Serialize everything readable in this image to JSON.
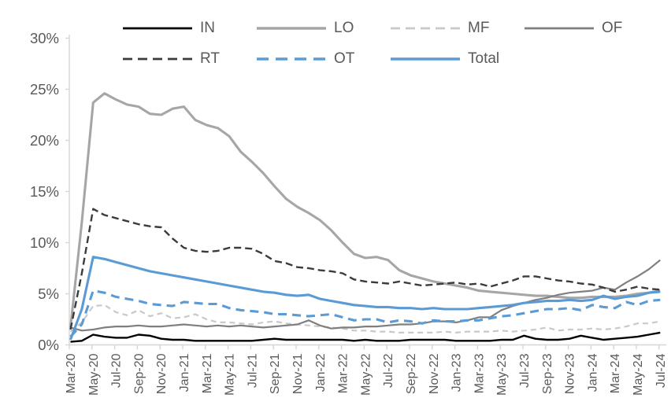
{
  "chart_data": {
    "type": "line",
    "title": "",
    "ylabel": "",
    "xlabel": "",
    "ylim": [
      0,
      30
    ],
    "grid": false,
    "legend_position": "top",
    "y_tick_labels": [
      "0%",
      "5%",
      "10%",
      "15%",
      "20%",
      "25%",
      "30%"
    ],
    "y_tick_values": [
      0,
      5,
      10,
      15,
      20,
      25,
      30
    ],
    "x_tick_labels": [
      "Mar-20",
      "May-20",
      "Jul-20",
      "Sep-20",
      "Nov-20",
      "Jan-21",
      "Mar-21",
      "May-21",
      "Jul-21",
      "Sep-21",
      "Nov-21",
      "Jan-22",
      "Mar-22",
      "May-22",
      "Jul-22",
      "Sep-22",
      "Nov-22",
      "Jan-23",
      "Mar-23",
      "May-23",
      "Jul-23",
      "Sep-23",
      "Nov-23",
      "Jan-24",
      "Mar-24",
      "May-24",
      "Jul-24"
    ],
    "x": [
      "Mar-20",
      "Apr-20",
      "May-20",
      "Jun-20",
      "Jul-20",
      "Aug-20",
      "Sep-20",
      "Oct-20",
      "Nov-20",
      "Dec-20",
      "Jan-21",
      "Feb-21",
      "Mar-21",
      "Apr-21",
      "May-21",
      "Jun-21",
      "Jul-21",
      "Aug-21",
      "Sep-21",
      "Oct-21",
      "Nov-21",
      "Dec-21",
      "Jan-22",
      "Feb-22",
      "Mar-22",
      "Apr-22",
      "May-22",
      "Jun-22",
      "Jul-22",
      "Aug-22",
      "Sep-22",
      "Oct-22",
      "Nov-22",
      "Dec-22",
      "Jan-23",
      "Feb-23",
      "Mar-23",
      "Apr-23",
      "May-23",
      "Jun-23",
      "Jul-23",
      "Aug-23",
      "Sep-23",
      "Oct-23",
      "Nov-23",
      "Dec-23",
      "Jan-24",
      "Feb-24",
      "Mar-24",
      "Apr-24",
      "May-24",
      "Jun-24",
      "Jul-24"
    ],
    "legend_rows": [
      [
        "IN",
        "LO",
        "MF",
        "OF"
      ],
      [
        "RT",
        "OT",
        "Total"
      ]
    ],
    "colors": {
      "IN": "#000000",
      "LO": "#a6a6a6",
      "MF": "#c9c9c9",
      "OF": "#7f7f7f",
      "RT": "#3b3b3b",
      "OT": "#5b9bd5",
      "Total": "#5b9bd5",
      "axis": "#d6d6d6",
      "tick_text": "#595959"
    },
    "series": [
      {
        "name": "IN",
        "line_style": "solid",
        "values": [
          0.3,
          0.4,
          1.0,
          0.8,
          0.7,
          0.7,
          1.0,
          0.9,
          0.6,
          0.5,
          0.5,
          0.4,
          0.4,
          0.4,
          0.4,
          0.4,
          0.4,
          0.5,
          0.6,
          0.5,
          0.5,
          0.5,
          0.5,
          0.5,
          0.5,
          0.4,
          0.5,
          0.4,
          0.4,
          0.4,
          0.5,
          0.5,
          0.5,
          0.5,
          0.4,
          0.4,
          0.4,
          0.4,
          0.5,
          0.5,
          0.9,
          0.6,
          0.5,
          0.5,
          0.6,
          0.9,
          0.7,
          0.5,
          0.6,
          0.7,
          0.8,
          1.0,
          1.2
        ]
      },
      {
        "name": "LO",
        "line_style": "solid",
        "values": [
          1.7,
          12.0,
          23.7,
          24.6,
          24.0,
          23.5,
          23.3,
          22.6,
          22.5,
          23.1,
          23.3,
          22.0,
          21.5,
          21.2,
          20.4,
          18.9,
          17.9,
          16.8,
          15.5,
          14.3,
          13.5,
          12.9,
          12.2,
          11.2,
          10.0,
          8.9,
          8.5,
          8.6,
          8.3,
          7.3,
          6.8,
          6.5,
          6.2,
          6.0,
          5.8,
          5.6,
          5.3,
          5.2,
          5.1,
          5.0,
          4.9,
          4.8,
          4.8,
          4.7,
          4.6,
          4.6,
          4.7,
          4.7,
          4.7,
          4.8,
          5.0,
          5.1,
          5.3
        ]
      },
      {
        "name": "MF",
        "line_style": "dashed",
        "values": [
          1.3,
          2.2,
          3.8,
          3.9,
          3.2,
          2.9,
          3.4,
          2.8,
          3.1,
          2.6,
          2.7,
          3.0,
          2.5,
          2.2,
          2.2,
          2.1,
          2.0,
          2.2,
          2.3,
          2.1,
          2.0,
          1.9,
          1.8,
          1.7,
          1.6,
          1.4,
          1.4,
          1.3,
          1.3,
          1.2,
          1.2,
          1.2,
          1.2,
          1.3,
          1.2,
          1.3,
          1.3,
          1.3,
          1.4,
          1.3,
          1.4,
          1.5,
          1.7,
          1.4,
          1.5,
          1.5,
          1.6,
          1.5,
          1.6,
          1.8,
          2.1,
          2.1,
          2.3
        ]
      },
      {
        "name": "OF",
        "line_style": "solid",
        "values": [
          1.7,
          1.4,
          1.5,
          1.7,
          1.8,
          1.8,
          1.9,
          1.8,
          1.8,
          1.9,
          2.0,
          1.9,
          1.8,
          1.9,
          1.8,
          1.9,
          1.8,
          1.7,
          1.8,
          1.9,
          2.0,
          2.4,
          1.9,
          1.6,
          1.7,
          1.7,
          1.8,
          1.8,
          1.9,
          2.0,
          2.0,
          2.1,
          2.3,
          2.3,
          2.2,
          2.4,
          2.7,
          2.7,
          3.4,
          3.8,
          4.1,
          4.4,
          4.6,
          4.9,
          5.1,
          5.2,
          5.3,
          5.6,
          5.4,
          6.1,
          6.7,
          7.4,
          8.3
        ]
      },
      {
        "name": "RT",
        "line_style": "dashed",
        "values": [
          1.5,
          7.0,
          13.3,
          12.7,
          12.4,
          12.1,
          11.8,
          11.6,
          11.5,
          10.4,
          9.5,
          9.2,
          9.1,
          9.2,
          9.5,
          9.5,
          9.4,
          8.9,
          8.2,
          8.0,
          7.6,
          7.5,
          7.3,
          7.2,
          7.0,
          6.4,
          6.2,
          6.1,
          6.0,
          6.2,
          6.0,
          5.8,
          5.9,
          6.0,
          6.1,
          5.9,
          6.0,
          5.7,
          6.0,
          6.3,
          6.7,
          6.7,
          6.5,
          6.3,
          6.2,
          6.0,
          5.9,
          5.6,
          5.2,
          5.4,
          5.7,
          5.5,
          5.4
        ]
      },
      {
        "name": "OT",
        "line_style": "dashed",
        "values": [
          0.8,
          2.0,
          5.3,
          5.1,
          4.7,
          4.5,
          4.3,
          4.0,
          3.9,
          3.8,
          4.2,
          4.1,
          4.0,
          4.0,
          3.6,
          3.4,
          3.3,
          3.2,
          3.0,
          3.0,
          2.9,
          2.8,
          2.9,
          3.0,
          2.7,
          2.4,
          2.5,
          2.5,
          2.2,
          2.4,
          2.3,
          2.1,
          2.4,
          2.3,
          2.3,
          2.4,
          2.4,
          2.6,
          2.8,
          2.9,
          3.1,
          3.3,
          3.5,
          3.5,
          3.6,
          3.4,
          3.9,
          3.7,
          3.6,
          4.2,
          3.9,
          4.3,
          4.4
        ]
      },
      {
        "name": "Total",
        "line_style": "solid",
        "values": [
          0.5,
          3.5,
          8.6,
          8.4,
          8.1,
          7.8,
          7.5,
          7.2,
          7.0,
          6.8,
          6.6,
          6.4,
          6.2,
          6.0,
          5.8,
          5.6,
          5.4,
          5.2,
          5.1,
          4.9,
          4.8,
          4.9,
          4.5,
          4.3,
          4.1,
          3.9,
          3.8,
          3.7,
          3.7,
          3.6,
          3.6,
          3.5,
          3.6,
          3.5,
          3.5,
          3.5,
          3.6,
          3.7,
          3.8,
          3.9,
          4.1,
          4.2,
          4.3,
          4.3,
          4.4,
          4.3,
          4.4,
          4.8,
          4.5,
          4.7,
          4.8,
          5.1,
          5.2
        ]
      }
    ]
  }
}
